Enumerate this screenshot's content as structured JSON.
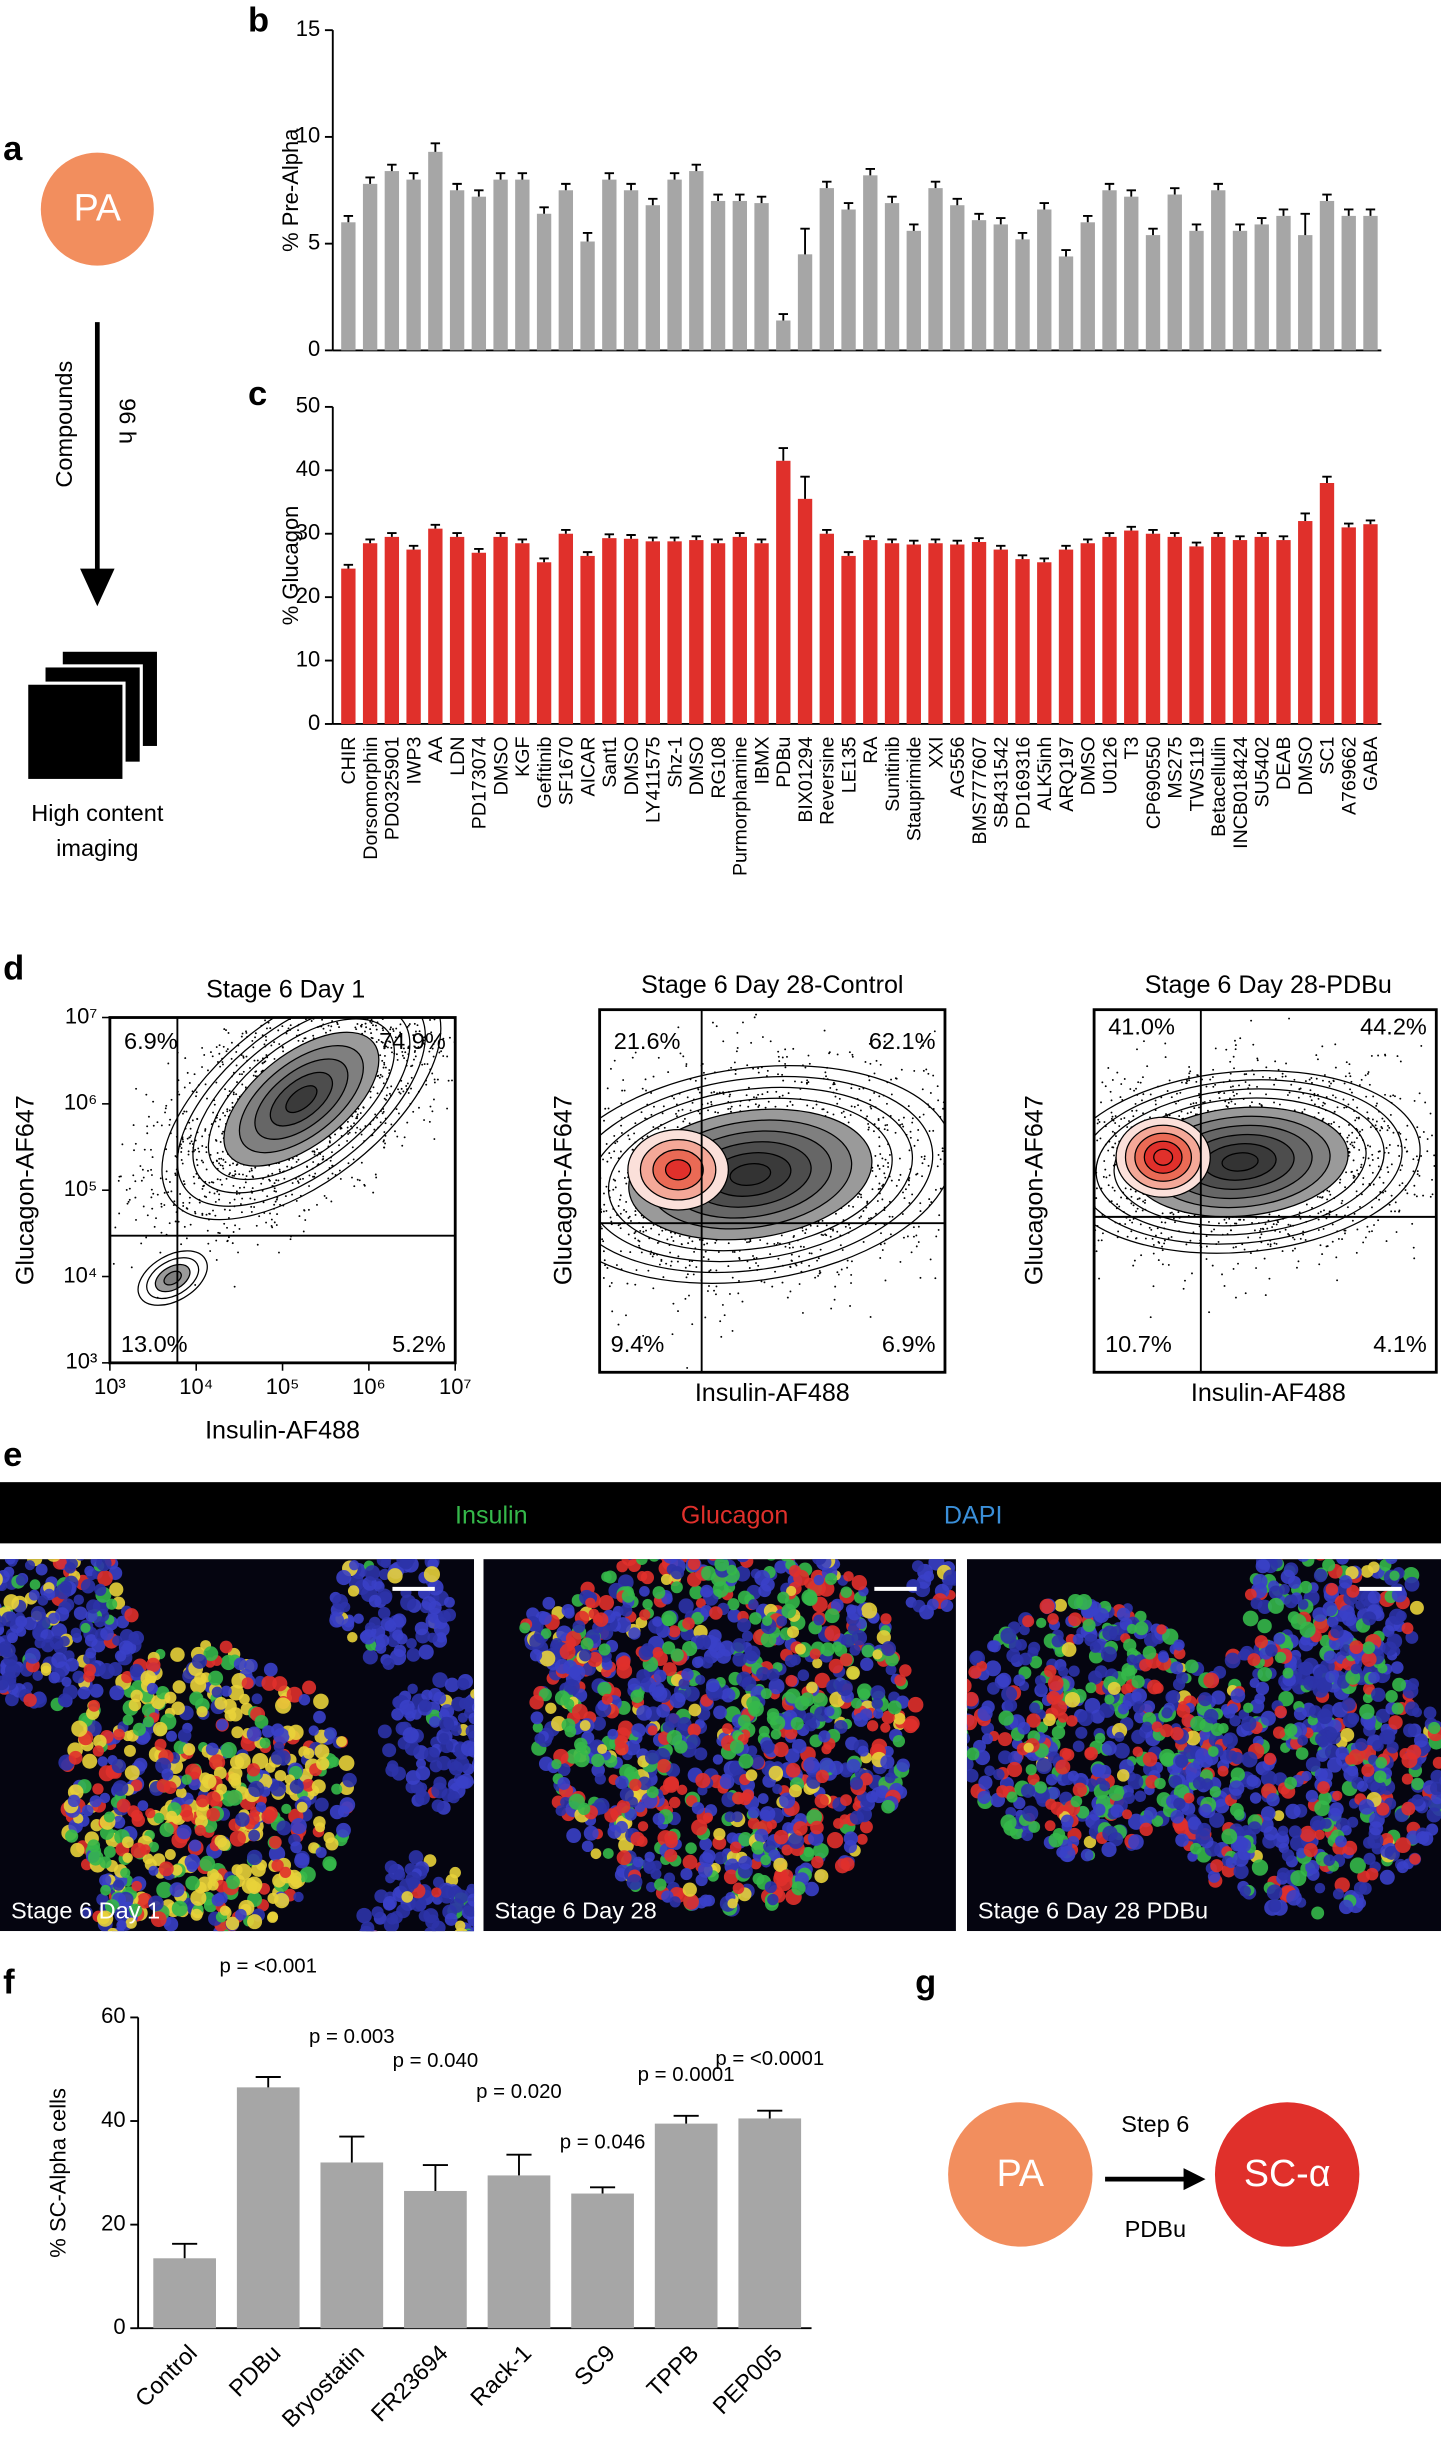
{
  "panel_labels": [
    "a",
    "b",
    "c",
    "d",
    "e",
    "f",
    "g"
  ],
  "schematic_a": {
    "circle": "PA",
    "arrow_label": "Compounds",
    "duration": "96 h",
    "caption": [
      "High content",
      "imaging"
    ]
  },
  "chart_data": [
    {
      "type": "bar",
      "ylabel": "% Pre-Alpha",
      "color": "#a6a6a6",
      "ylim": [
        0,
        15
      ],
      "yticks": [
        0,
        5,
        10,
        15
      ],
      "values": [
        6.0,
        7.8,
        8.4,
        8.0,
        9.3,
        7.5,
        7.2,
        8.0,
        8.0,
        6.4,
        7.5,
        5.1,
        8.0,
        7.5,
        6.8,
        8.0,
        8.4,
        7.0,
        7.0,
        6.9,
        1.4,
        4.5,
        7.6,
        6.6,
        8.2,
        6.9,
        5.6,
        7.6,
        6.8,
        6.1,
        5.9,
        5.2,
        6.6,
        4.4,
        6.0,
        7.5,
        7.2,
        5.4,
        7.3,
        5.6,
        7.5,
        5.6,
        5.9,
        6.3,
        5.4,
        7.0,
        6.3,
        6.3
      ],
      "errors": [
        0.3,
        0.3,
        0.3,
        0.3,
        0.4,
        0.3,
        0.3,
        0.3,
        0.3,
        0.3,
        0.3,
        0.4,
        0.3,
        0.3,
        0.3,
        0.3,
        0.3,
        0.3,
        0.3,
        0.3,
        0.3,
        1.2,
        0.3,
        0.3,
        0.3,
        0.3,
        0.3,
        0.3,
        0.3,
        0.3,
        0.3,
        0.3,
        0.3,
        0.3,
        0.3,
        0.3,
        0.3,
        0.3,
        0.3,
        0.3,
        0.3,
        0.3,
        0.3,
        0.3,
        1.0,
        0.3,
        0.3,
        0.3
      ]
    },
    {
      "type": "bar",
      "ylabel": "% Glucagon",
      "color": "#e0302b",
      "ylim": [
        0,
        50
      ],
      "yticks": [
        0,
        10,
        20,
        30,
        40,
        50
      ],
      "categories": [
        "CHIR",
        "Dorsomorphin",
        "PD0325901",
        "IWP3",
        "AA",
        "LDN",
        "PD173074",
        "DMSO",
        "KGF",
        "Gefitinib",
        "SF1670",
        "AICAR",
        "Sant1",
        "DMSO",
        "LY411575",
        "Shz-1",
        "DMSO",
        "RG108",
        "Purmorphamine",
        "IBMX",
        "PDBu",
        "BIX01294",
        "Reversine",
        "LE135",
        "RA",
        "Sunitinib",
        "Stauprimide",
        "XXI",
        "AG556",
        "BMS777607",
        "SB431542",
        "PD169316",
        "ALK5inh",
        "ARQ197",
        "DMSO",
        "U0126",
        "T3",
        "CP690550",
        "MS275",
        "TWS119",
        "Betacellulin",
        "INCB018424",
        "SU5402",
        "DEAB",
        "DMSO",
        "SC1",
        "A769662",
        "GABA"
      ],
      "values": [
        24.5,
        28.5,
        29.5,
        27.5,
        30.8,
        29.5,
        27,
        29.5,
        28.5,
        25.5,
        30,
        26.5,
        29.3,
        29.2,
        28.8,
        28.8,
        29,
        28.5,
        29.5,
        28.5,
        41.5,
        35.5,
        30,
        26.5,
        29,
        28.5,
        28.3,
        28.5,
        28.3,
        28.7,
        27.5,
        26,
        25.5,
        27.5,
        28.5,
        29.5,
        30.5,
        30,
        29.5,
        28,
        29.5,
        29,
        29.5,
        29,
        32,
        38,
        31,
        31.5
      ],
      "errors": [
        0.6,
        0.6,
        0.6,
        0.6,
        0.6,
        0.6,
        0.6,
        0.6,
        0.6,
        0.6,
        0.6,
        0.6,
        0.6,
        0.6,
        0.6,
        0.6,
        0.6,
        0.6,
        0.6,
        0.6,
        2.0,
        3.5,
        0.6,
        0.6,
        0.6,
        0.6,
        0.6,
        0.6,
        0.6,
        0.6,
        0.6,
        0.6,
        0.6,
        0.6,
        0.6,
        0.6,
        0.6,
        0.6,
        0.6,
        0.6,
        0.6,
        0.6,
        0.6,
        0.6,
        1.2,
        1.0,
        0.6,
        0.6
      ]
    },
    {
      "type": "bar",
      "ylabel": "% SC-Alpha cells",
      "color": "#a6a6a6",
      "ylim": [
        0,
        60
      ],
      "yticks": [
        0,
        20,
        40,
        60
      ],
      "categories": [
        "Control",
        "PDBu",
        "Bryostatin",
        "FR23694",
        "Rack-1",
        "SC9",
        "TPPB",
        "PEP005"
      ],
      "values": [
        13.5,
        46.5,
        32,
        26.5,
        29.5,
        26,
        39.5,
        40.5
      ],
      "errors": [
        2.8,
        2,
        5,
        5,
        4,
        1.2,
        1.5,
        1.5
      ],
      "p_values": [
        null,
        "p = <0.001",
        "p = 0.003",
        "p = 0.040",
        "p = 0.020",
        "p = 0.046",
        "p = 0.0001",
        "p = <0.0001"
      ]
    }
  ],
  "flow_d": [
    {
      "title": "Stage 6 Day 1",
      "xlabel": "Insulin-AF488",
      "ylabel": "Glucagon-AF647",
      "quadrants": [
        "6.9%",
        "74.9%",
        "13.0%",
        "5.2%"
      ],
      "log_scale": true,
      "xlim": [
        1000,
        10000000
      ],
      "ylim": [
        1000,
        10000000
      ],
      "xticks": [
        {
          "value": 1000,
          "label": "10³"
        },
        {
          "value": 10000,
          "label": "10⁴"
        },
        {
          "value": 100000,
          "label": "10⁵"
        },
        {
          "value": 1000000,
          "label": "10⁶"
        },
        {
          "value": 10000000,
          "label": "10⁷"
        }
      ],
      "yticks": [
        {
          "value": 1000,
          "label": "10³"
        },
        {
          "value": 10000,
          "label": "10⁴"
        },
        {
          "value": 100000,
          "label": "10⁵"
        },
        {
          "value": 1000000,
          "label": "10⁶"
        },
        {
          "value": 10000000,
          "label": "10⁷"
        }
      ]
    },
    {
      "title": "Stage 6 Day 28-Control",
      "xlabel": "Insulin-AF488",
      "ylabel": "Glucagon-AF647",
      "quadrants": [
        "21.6%",
        "62.1%",
        "9.4%",
        "6.9%"
      ]
    },
    {
      "title": "Stage 6 Day 28-PDBu",
      "xlabel": "Insulin-AF488",
      "ylabel": "Glucagon-AF647",
      "quadrants": [
        "41.0%",
        "44.2%",
        "10.7%",
        "4.1%"
      ]
    }
  ],
  "microscopy_e": {
    "legend": [
      {
        "name": "Insulin",
        "color": "#35b84a"
      },
      {
        "name": "Glucagon",
        "color": "#e0302b"
      },
      {
        "name": "DAPI",
        "color": "#3a8fd9"
      }
    ],
    "images": [
      "Stage 6 Day 1",
      "Stage 6 Day 28",
      "Stage 6 Day 28 PDBu"
    ]
  },
  "schematic_g": {
    "source": "PA",
    "step": "Step 6",
    "treatment": "PDBu",
    "target": "SC-α"
  }
}
